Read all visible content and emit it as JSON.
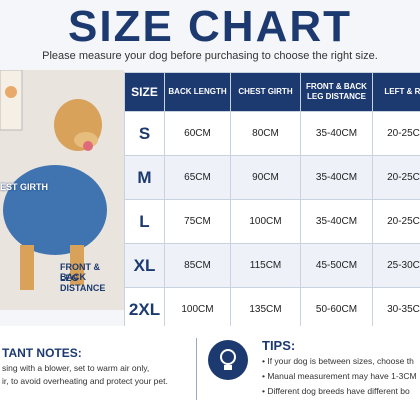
{
  "header": {
    "title": "SIZE CHART",
    "subtitle": "Please measure your dog before purchasing to choose the right size."
  },
  "photo": {
    "labels": [
      "EST GIRTH",
      "FRONT & BACK",
      "LEG DISTANCE"
    ]
  },
  "table": {
    "columns": [
      "SIZE",
      "BACK LENGTH",
      "CHEST GIRTH",
      "FRONT & BACK LEG DISTANCE",
      "LEFT & RI"
    ],
    "rows": [
      [
        "S",
        "60CM",
        "80CM",
        "35-40CM",
        "20-25C"
      ],
      [
        "M",
        "65CM",
        "90CM",
        "35-40CM",
        "20-25C"
      ],
      [
        "L",
        "75CM",
        "100CM",
        "35-40CM",
        "20-25C"
      ],
      [
        "XL",
        "85CM",
        "115CM",
        "45-50CM",
        "25-30C"
      ],
      [
        "2XL",
        "100CM",
        "135CM",
        "50-60CM",
        "30-35C"
      ]
    ]
  },
  "notes": {
    "title": "TANT NOTES:",
    "lines": [
      "sing with a blower, set to warm air only,",
      "ir, to avoid overheating and protect your pet."
    ]
  },
  "tips": {
    "title": "TIPS:",
    "items": [
      "If your dog is between sizes, choose th",
      "Manual measurement may have 1-3CM",
      "Different dog breeds have different bo"
    ]
  }
}
